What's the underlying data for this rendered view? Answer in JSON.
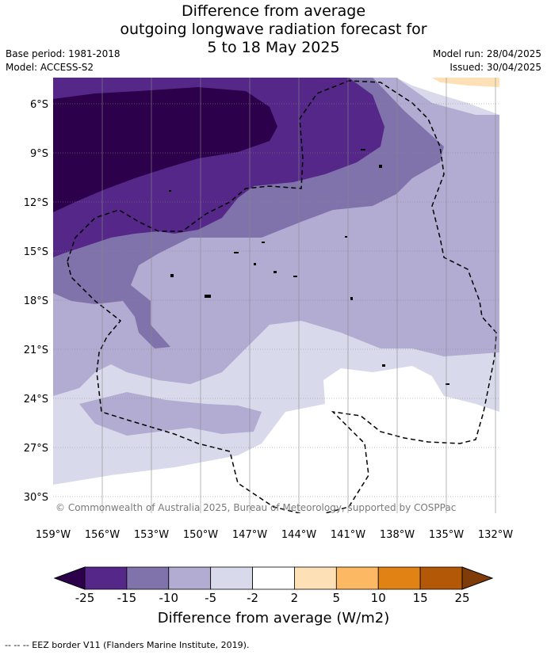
{
  "title": {
    "line1": "Difference from average",
    "line2": "outgoing longwave radiation forecast for",
    "line3": "5 to 18 May 2025"
  },
  "meta": {
    "base_period": "Base period: 1981-2018",
    "model": "Model: ACCESS-S2",
    "model_run": "Model run: 28/04/2025",
    "issued": "Issued: 30/04/2025"
  },
  "map": {
    "lat_labels": [
      "6°S",
      "9°S",
      "12°S",
      "15°S",
      "18°S",
      "21°S",
      "24°S",
      "27°S",
      "30°S"
    ],
    "lon_labels": [
      "159°W",
      "156°W",
      "153°W",
      "150°W",
      "147°W",
      "144°W",
      "141°W",
      "138°W",
      "135°W",
      "132°W"
    ],
    "copyright": "© Commonwealth of Australia 2025, Bureau of Meteorology, supported by COSPPac"
  },
  "colorbar": {
    "ticks": [
      "-25",
      "-15",
      "-10",
      "-5",
      "-2",
      "2",
      "5",
      "10",
      "15",
      "25"
    ],
    "colors": [
      "#2d004b",
      "#542788",
      "#8073ac",
      "#b2abd2",
      "#d8daeb",
      "#ffffff",
      "#fee0b6",
      "#fdb863",
      "#e08214",
      "#b35806",
      "#7f3b08"
    ],
    "title": "Difference from average (W/m2)"
  },
  "footer": "--  --  -- EEZ border V11 (Flanders Marine Institute, 2019)."
}
